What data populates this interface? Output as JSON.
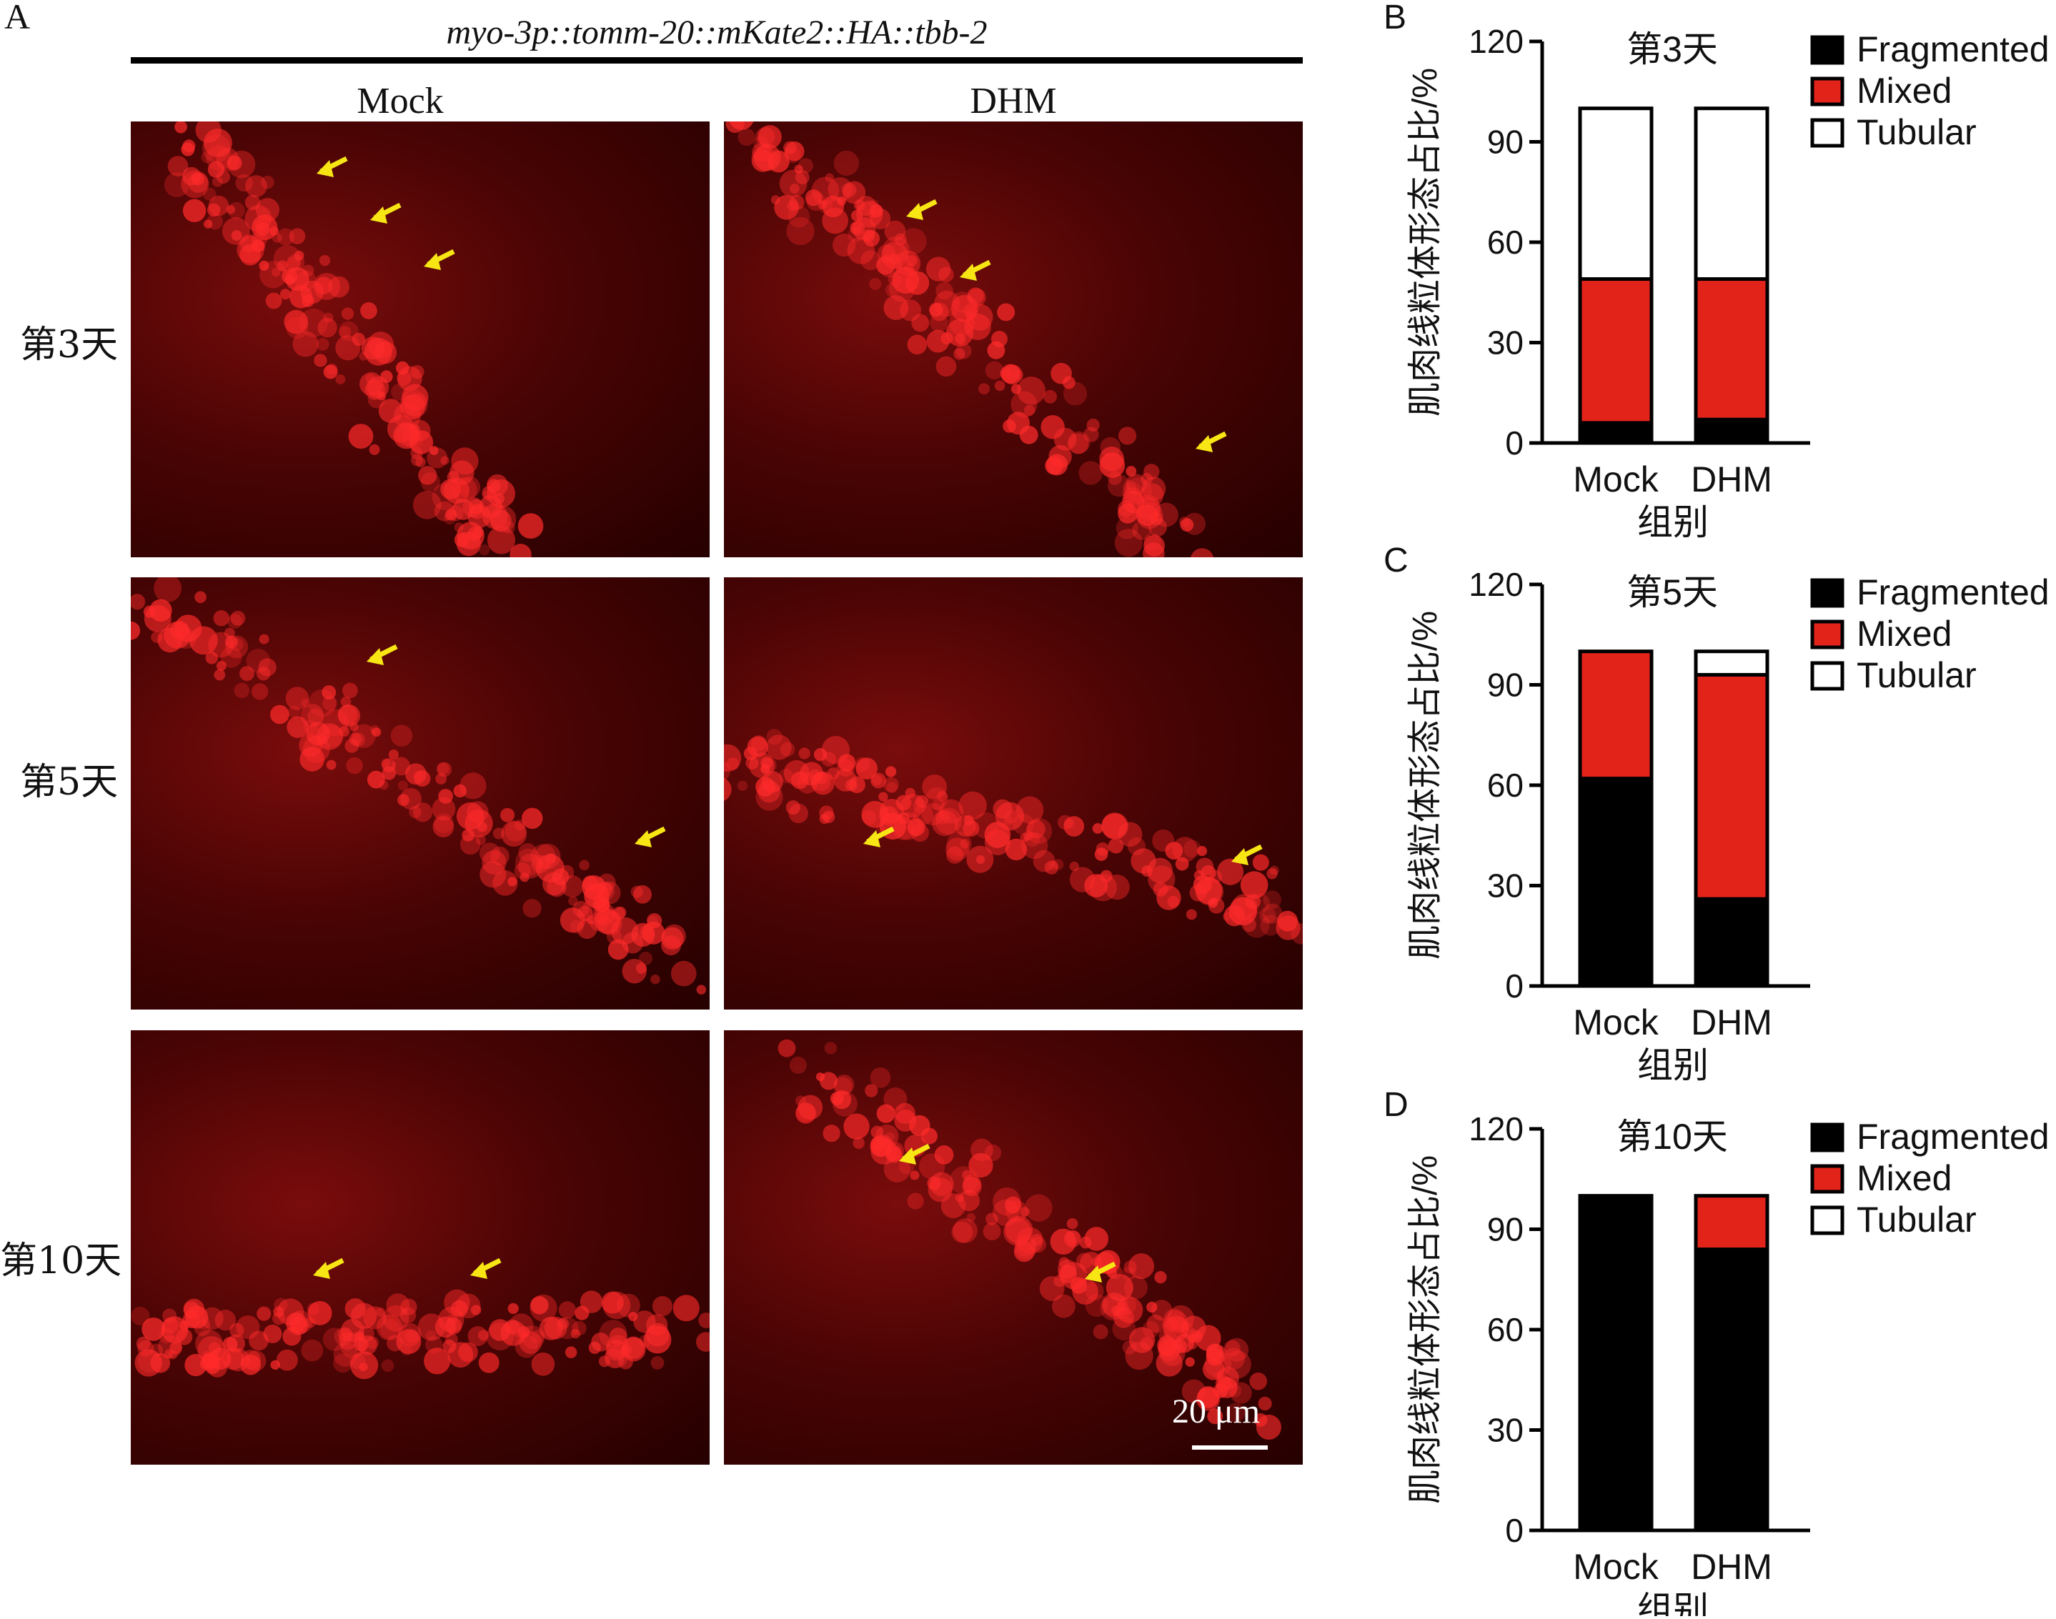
{
  "panel_a": {
    "letter": "A",
    "construct": "myo-3p::tomm-20::mKate2::HA::tbb-2",
    "columns": [
      "Mock",
      "DHM"
    ],
    "rows": [
      "第3天",
      "第5天",
      "第10天"
    ],
    "scale_bar": "20 μm"
  },
  "colors": {
    "fragmented": "#000000",
    "mixed": "#e2231a",
    "tubular": "#ffffff",
    "arrow": "#f7e614"
  },
  "chart_data": [
    {
      "panel": "B",
      "type": "bar",
      "stacked": true,
      "title": "第3天",
      "xlabel": "组别",
      "ylabel": "肌肉线粒体形态占比/%",
      "categories": [
        "Mock",
        "DHM"
      ],
      "ylim": [
        0,
        120
      ],
      "yticks": [
        0,
        30,
        60,
        90,
        120
      ],
      "legend": [
        "Fragmented",
        "Mixed",
        "Tubular"
      ],
      "legend_position": "right",
      "series": [
        {
          "name": "Fragmented",
          "values": [
            6,
            7
          ]
        },
        {
          "name": "Mixed",
          "values": [
            43,
            42
          ]
        },
        {
          "name": "Tubular",
          "values": [
            51,
            51
          ]
        }
      ]
    },
    {
      "panel": "C",
      "type": "bar",
      "stacked": true,
      "title": "第5天",
      "xlabel": "组别",
      "ylabel": "肌肉线粒体形态占比/%",
      "categories": [
        "Mock",
        "DHM"
      ],
      "ylim": [
        0,
        120
      ],
      "yticks": [
        0,
        30,
        60,
        90,
        120
      ],
      "legend": [
        "Fragmented",
        "Mixed",
        "Tubular"
      ],
      "legend_position": "right",
      "series": [
        {
          "name": "Fragmented",
          "values": [
            62,
            26
          ]
        },
        {
          "name": "Mixed",
          "values": [
            38,
            67
          ]
        },
        {
          "name": "Tubular",
          "values": [
            0,
            7
          ]
        }
      ]
    },
    {
      "panel": "D",
      "type": "bar",
      "stacked": true,
      "title": "第10天",
      "xlabel": "组别",
      "ylabel": "肌肉线粒体形态占比/%",
      "categories": [
        "Mock",
        "DHM"
      ],
      "ylim": [
        0,
        120
      ],
      "yticks": [
        0,
        30,
        60,
        90,
        120
      ],
      "legend": [
        "Fragmented",
        "Mixed",
        "Tubular"
      ],
      "legend_position": "right",
      "series": [
        {
          "name": "Fragmented",
          "values": [
            100,
            84
          ]
        },
        {
          "name": "Mixed",
          "values": [
            0,
            16
          ]
        },
        {
          "name": "Tubular",
          "values": [
            0,
            0
          ]
        }
      ]
    }
  ]
}
